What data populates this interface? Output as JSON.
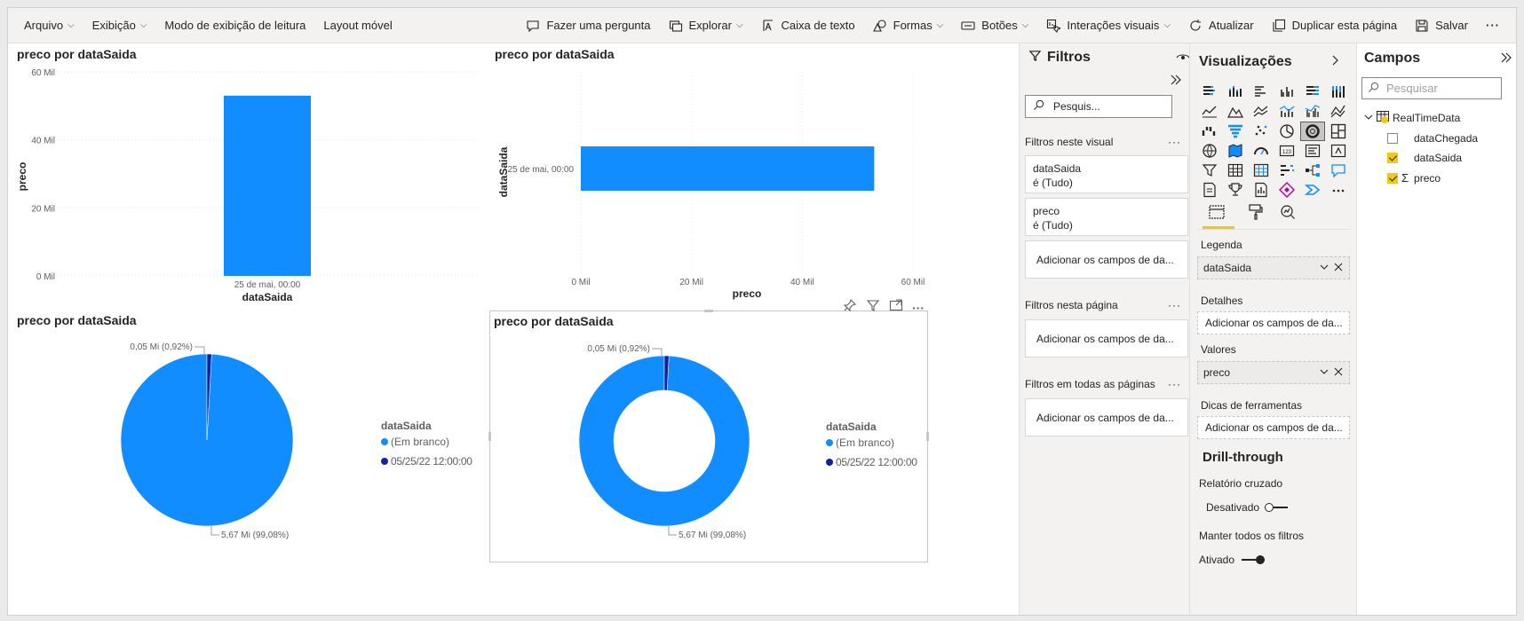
{
  "ribbon": {
    "menus": [
      {
        "label": "Arquivo",
        "chevron": true
      },
      {
        "label": "Exibição",
        "chevron": true
      },
      {
        "label": "Modo de exibição de leitura",
        "chevron": false
      },
      {
        "label": "Layout móvel",
        "chevron": false
      }
    ],
    "actions": [
      {
        "label": "Fazer uma pergunta",
        "icon": "chat-question-icon",
        "chevron": false
      },
      {
        "label": "Explorar",
        "icon": "explore-icon",
        "chevron": true
      },
      {
        "label": "Caixa de texto",
        "icon": "textbox-icon",
        "chevron": false
      },
      {
        "label": "Formas",
        "icon": "shapes-icon",
        "chevron": true
      },
      {
        "label": "Botões",
        "icon": "buttons-icon",
        "chevron": true
      },
      {
        "label": "Interações visuais",
        "icon": "visual-interactions-icon",
        "chevron": true
      },
      {
        "label": "Atualizar",
        "icon": "refresh-icon",
        "chevron": false
      },
      {
        "label": "Duplicar esta página",
        "icon": "duplicate-icon",
        "chevron": false
      },
      {
        "label": "Salvar",
        "icon": "save-icon",
        "chevron": false
      }
    ],
    "more": "···"
  },
  "visuals": {
    "column": {
      "title": "preco por dataSaida"
    },
    "bar": {
      "title": "preco por dataSaida"
    },
    "pie": {
      "title": "preco por dataSaida",
      "legend_title": "dataSaida",
      "legend": [
        "(Em branco)",
        "05/25/22 12:00:00"
      ],
      "label_small": "0,05 Mi (0,92%)",
      "label_large": "5,67 Mi (99,08%)"
    },
    "donut": {
      "title": "preco por dataSaida",
      "legend_title": "dataSaida",
      "legend": [
        "(Em branco)",
        "05/25/22 12:00:00"
      ],
      "label_small": "0,05 Mi (0,92%)",
      "label_large": "5,67 Mi (99,08%)"
    }
  },
  "chart_data": [
    {
      "type": "bar",
      "orientation": "vertical",
      "title": "preco por dataSaida",
      "xlabel": "dataSaida",
      "ylabel": "preco",
      "categories": [
        "25 de mai, 00:00"
      ],
      "values": [
        53000
      ],
      "ylim": [
        0,
        60000
      ],
      "yticks": [
        "0 Mil",
        "20 Mil",
        "40 Mil",
        "60 Mil"
      ],
      "grid": true,
      "color": "#118dff"
    },
    {
      "type": "bar",
      "orientation": "horizontal",
      "title": "preco por dataSaida",
      "xlabel": "preco",
      "ylabel": "dataSaida",
      "categories": [
        "25 de mai, 00:00"
      ],
      "values": [
        53000
      ],
      "xlim": [
        0,
        60000
      ],
      "xticks": [
        "0 Mil",
        "20 Mil",
        "40 Mil",
        "60 Mil"
      ],
      "grid": true,
      "color": "#118dff"
    },
    {
      "type": "pie",
      "title": "preco por dataSaida",
      "categories": [
        "(Em branco)",
        "05/25/22 12:00:00"
      ],
      "values": [
        5.67,
        0.05
      ],
      "unit": "Mi",
      "percent": [
        99.08,
        0.92
      ],
      "colors": [
        "#118dff",
        "#12239e"
      ],
      "legend": "right"
    },
    {
      "type": "pie",
      "subtype": "donut",
      "title": "preco por dataSaida",
      "categories": [
        "(Em branco)",
        "05/25/22 12:00:00"
      ],
      "values": [
        5.67,
        0.05
      ],
      "unit": "Mi",
      "percent": [
        99.08,
        0.92
      ],
      "colors": [
        "#118dff",
        "#12239e"
      ],
      "legend": "right"
    }
  ],
  "visual_header_icons": [
    "pin-icon",
    "filter-icon",
    "focus-mode-icon",
    "more-options-icon"
  ],
  "filters": {
    "title": "Filtros",
    "search_placeholder": "Pesquis...",
    "sec_visual": "Filtros neste visual",
    "card1_field": "dataSaida",
    "card1_value": "é (Tudo)",
    "card2_field": "preco",
    "card2_value": "é (Tudo)",
    "add_fields": "Adicionar os campos de da...",
    "sec_page": "Filtros nesta página",
    "sec_all": "Filtros em todas as páginas",
    "dots": "···"
  },
  "visualizations": {
    "title": "Visualizações",
    "legend_label": "Legenda",
    "legend_field": "dataSaida",
    "details_label": "Detalhes",
    "details_placeholder": "Adicionar os campos de da...",
    "values_label": "Valores",
    "values_field": "preco",
    "tooltips_label": "Dicas de ferramentas",
    "tooltips_placeholder": "Adicionar os campos de da...",
    "drill_title": "Drill-through",
    "cross_report": "Relatório cruzado",
    "cross_report_state": "Desativado",
    "keep_filters": "Manter todos os filtros",
    "keep_filters_state": "Ativado"
  },
  "fields": {
    "title": "Campos",
    "search_placeholder": "Pesquisar",
    "table_name": "RealTimeData",
    "items": [
      {
        "label": "dataChegada",
        "checked": false,
        "sigma": false
      },
      {
        "label": "dataSaida",
        "checked": true,
        "sigma": false
      },
      {
        "label": "preco",
        "checked": true,
        "sigma": true
      }
    ]
  },
  "colors": {
    "accent": "#118dff",
    "dark": "#12239e",
    "yellow": "#f2c811"
  }
}
